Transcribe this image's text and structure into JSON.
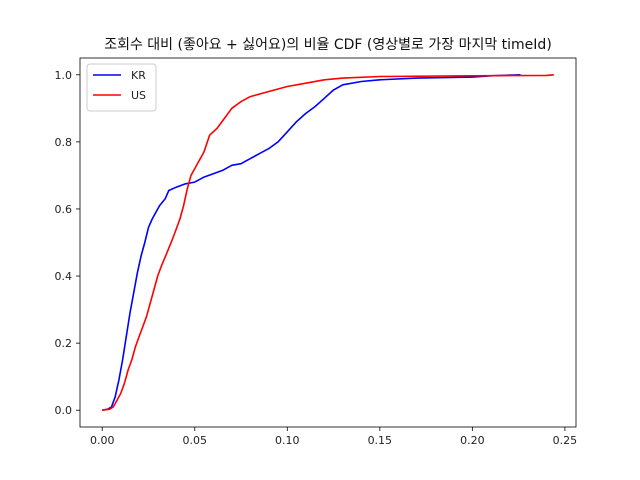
{
  "chart_data": {
    "type": "line",
    "title": "조회수 대비 (좋아요 + 싫어요)의 비율 CDF (영상별로 가장 마지막 timeId)",
    "xlabel": "",
    "ylabel": "",
    "xlim": [
      -0.012,
      0.256
    ],
    "ylim": [
      -0.05,
      1.05
    ],
    "x_ticks": [
      0.0,
      0.05,
      0.1,
      0.15,
      0.2,
      0.25
    ],
    "x_tick_labels": [
      "0.00",
      "0.05",
      "0.10",
      "0.15",
      "0.20",
      "0.25"
    ],
    "y_ticks": [
      0.0,
      0.2,
      0.4,
      0.6,
      0.8,
      1.0
    ],
    "y_tick_labels": [
      "0.0",
      "0.2",
      "0.4",
      "0.6",
      "0.8",
      "1.0"
    ],
    "grid": false,
    "legend_position": "upper-left",
    "series": [
      {
        "name": "KR",
        "color": "#0000ff",
        "points": [
          [
            0.0,
            0.0
          ],
          [
            0.003,
            0.003
          ],
          [
            0.005,
            0.01
          ],
          [
            0.007,
            0.04
          ],
          [
            0.009,
            0.09
          ],
          [
            0.011,
            0.15
          ],
          [
            0.013,
            0.22
          ],
          [
            0.015,
            0.29
          ],
          [
            0.017,
            0.35
          ],
          [
            0.019,
            0.41
          ],
          [
            0.021,
            0.46
          ],
          [
            0.023,
            0.5
          ],
          [
            0.025,
            0.545
          ],
          [
            0.027,
            0.57
          ],
          [
            0.029,
            0.59
          ],
          [
            0.031,
            0.61
          ],
          [
            0.034,
            0.63
          ],
          [
            0.036,
            0.655
          ],
          [
            0.04,
            0.665
          ],
          [
            0.045,
            0.675
          ],
          [
            0.05,
            0.68
          ],
          [
            0.055,
            0.695
          ],
          [
            0.06,
            0.705
          ],
          [
            0.065,
            0.715
          ],
          [
            0.07,
            0.73
          ],
          [
            0.075,
            0.735
          ],
          [
            0.08,
            0.75
          ],
          [
            0.085,
            0.765
          ],
          [
            0.09,
            0.78
          ],
          [
            0.095,
            0.8
          ],
          [
            0.1,
            0.83
          ],
          [
            0.105,
            0.86
          ],
          [
            0.11,
            0.885
          ],
          [
            0.115,
            0.905
          ],
          [
            0.12,
            0.93
          ],
          [
            0.125,
            0.955
          ],
          [
            0.13,
            0.97
          ],
          [
            0.14,
            0.98
          ],
          [
            0.15,
            0.985
          ],
          [
            0.17,
            0.99
          ],
          [
            0.2,
            0.993
          ],
          [
            0.21,
            0.997
          ],
          [
            0.226,
            1.0
          ]
        ]
      },
      {
        "name": "US",
        "color": "#ff0000",
        "points": [
          [
            0.0,
            0.0
          ],
          [
            0.004,
            0.003
          ],
          [
            0.006,
            0.01
          ],
          [
            0.008,
            0.03
          ],
          [
            0.01,
            0.05
          ],
          [
            0.012,
            0.08
          ],
          [
            0.014,
            0.12
          ],
          [
            0.016,
            0.15
          ],
          [
            0.018,
            0.19
          ],
          [
            0.02,
            0.22
          ],
          [
            0.022,
            0.25
          ],
          [
            0.024,
            0.28
          ],
          [
            0.026,
            0.32
          ],
          [
            0.028,
            0.36
          ],
          [
            0.03,
            0.4
          ],
          [
            0.032,
            0.43
          ],
          [
            0.035,
            0.47
          ],
          [
            0.038,
            0.51
          ],
          [
            0.04,
            0.54
          ],
          [
            0.042,
            0.57
          ],
          [
            0.044,
            0.61
          ],
          [
            0.046,
            0.66
          ],
          [
            0.048,
            0.7
          ],
          [
            0.05,
            0.72
          ],
          [
            0.052,
            0.74
          ],
          [
            0.055,
            0.77
          ],
          [
            0.058,
            0.82
          ],
          [
            0.062,
            0.84
          ],
          [
            0.066,
            0.87
          ],
          [
            0.07,
            0.9
          ],
          [
            0.075,
            0.92
          ],
          [
            0.08,
            0.935
          ],
          [
            0.09,
            0.95
          ],
          [
            0.1,
            0.965
          ],
          [
            0.11,
            0.975
          ],
          [
            0.12,
            0.985
          ],
          [
            0.13,
            0.99
          ],
          [
            0.15,
            0.995
          ],
          [
            0.2,
            0.997
          ],
          [
            0.24,
            0.998
          ],
          [
            0.244,
            1.0
          ]
        ]
      }
    ]
  }
}
